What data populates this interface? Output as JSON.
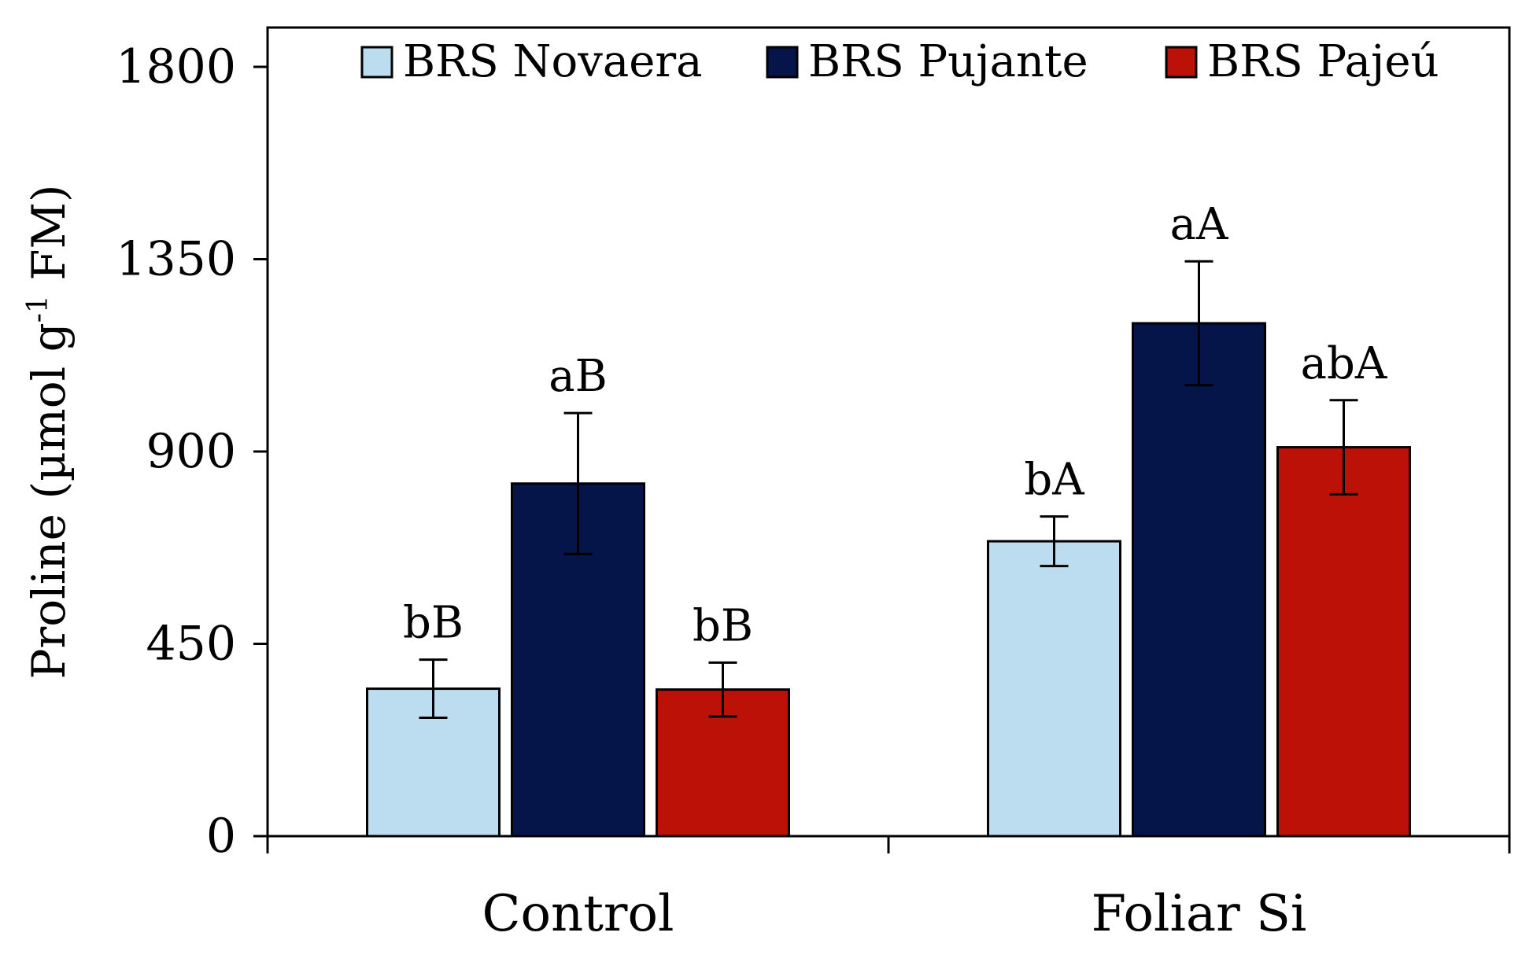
{
  "chart_data": {
    "type": "bar",
    "title": "",
    "xlabel": "",
    "ylabel": {
      "prefix": "Proline (µmol g",
      "superscript": "-1",
      "suffix": " FM)"
    },
    "ylim": [
      0,
      1800
    ],
    "yticks": [
      0,
      450,
      900,
      1350,
      1800
    ],
    "categories": [
      "Control",
      "Foliar Si"
    ],
    "legend_position": "top",
    "series": [
      {
        "name": "BRS Novaera",
        "color": "#bcdcf0",
        "values": [
          345,
          690
        ],
        "errors": [
          68,
          58
        ],
        "labels": [
          "bB",
          "bA"
        ]
      },
      {
        "name": "BRS Pujante",
        "color": "#05154a",
        "values": [
          825,
          1200
        ],
        "errors": [
          165,
          145
        ],
        "labels": [
          "aB",
          "aA"
        ]
      },
      {
        "name": "BRS Pajeú",
        "color": "#bb1106",
        "values": [
          343,
          910
        ],
        "errors": [
          63,
          110
        ],
        "labels": [
          "bB",
          "abA"
        ]
      }
    ]
  }
}
